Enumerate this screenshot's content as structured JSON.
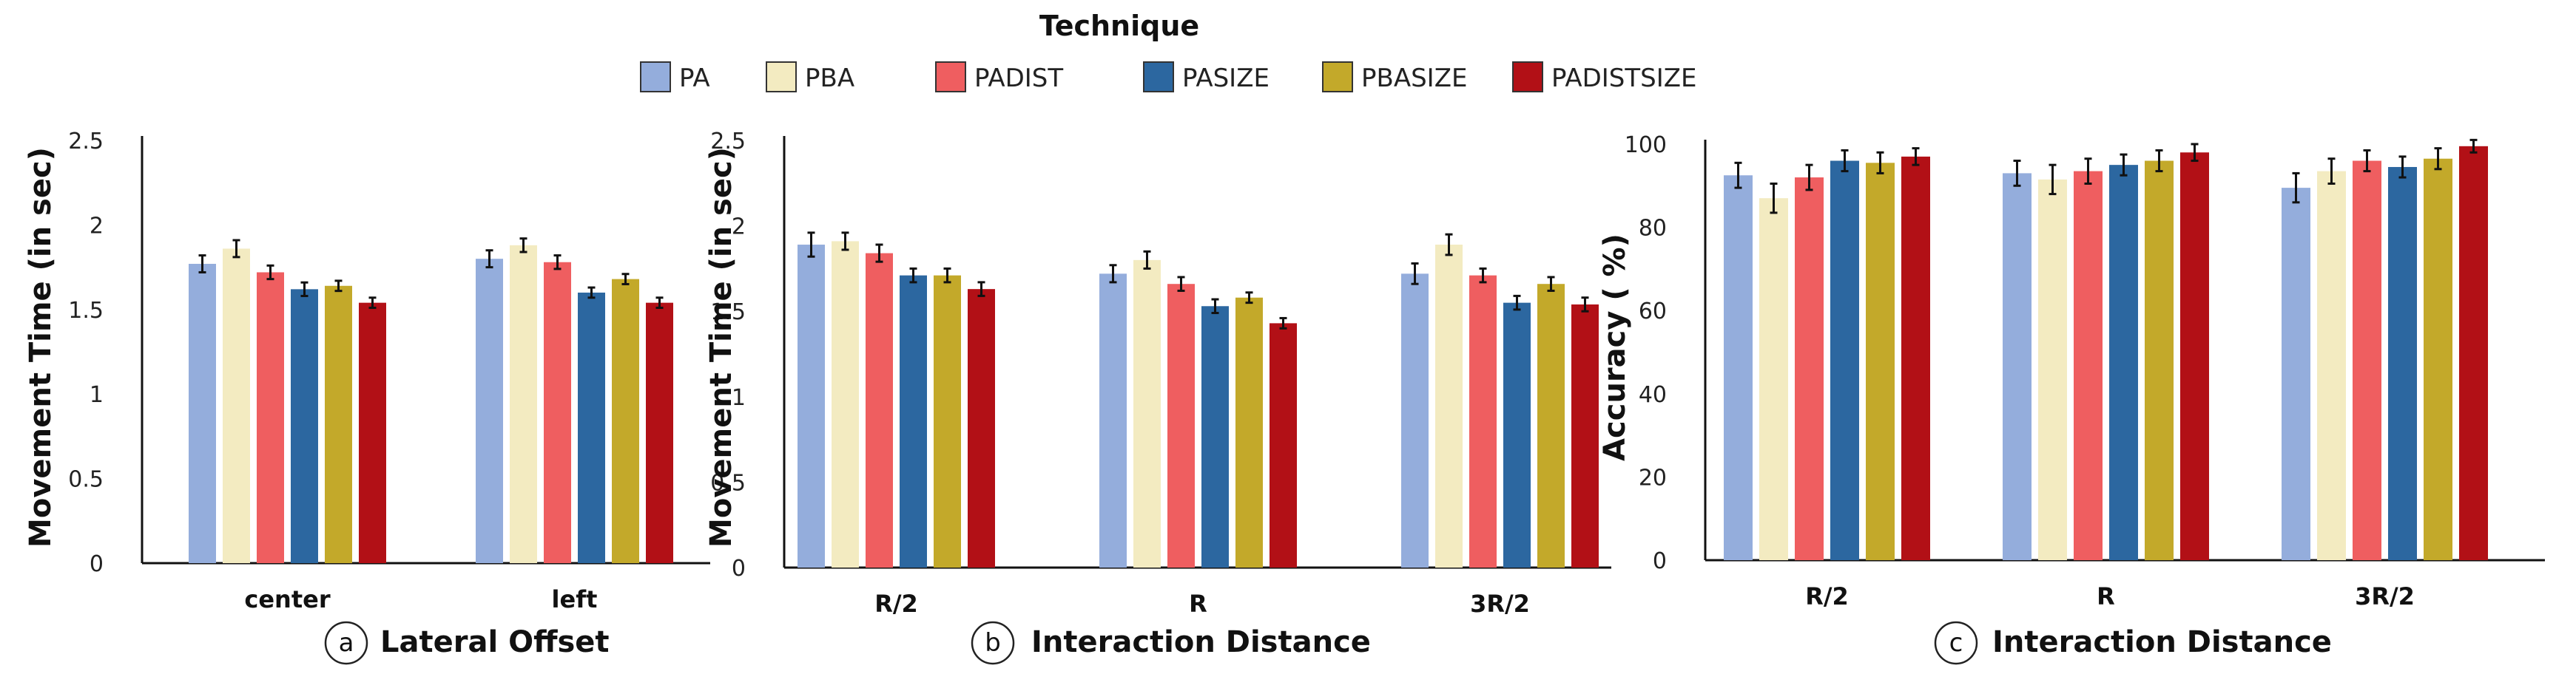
{
  "legend": {
    "title": "Technique",
    "items": [
      {
        "label": "PA",
        "color": "#94ADDC"
      },
      {
        "label": "PBA",
        "color": "#F3EBC1"
      },
      {
        "label": "PADIST",
        "color": "#EF5E60"
      },
      {
        "label": "PASIZE",
        "color": "#2C67A0"
      },
      {
        "label": "PBASIZE",
        "color": "#C3A92A"
      },
      {
        "label": "PADISTSIZE",
        "color": "#B21016"
      }
    ]
  },
  "chart_data": [
    {
      "type": "bar",
      "panel_label": "a",
      "xlabel": "Lateral Offset",
      "ylabel": "Movement Time (in sec)",
      "ylim": [
        0,
        2.5
      ],
      "yticks": [
        "0",
        "0.5",
        "1",
        "1.5",
        "2",
        "2.5"
      ],
      "grid": false,
      "legend_position": "top",
      "categories": [
        "center",
        "left"
      ],
      "series": [
        {
          "name": "PA",
          "values": [
            1.77,
            1.8
          ],
          "errors": [
            0.05,
            0.05
          ]
        },
        {
          "name": "PBA",
          "values": [
            1.86,
            1.88
          ],
          "errors": [
            0.05,
            0.04
          ]
        },
        {
          "name": "PADIST",
          "values": [
            1.72,
            1.78
          ],
          "errors": [
            0.04,
            0.04
          ]
        },
        {
          "name": "PASIZE",
          "values": [
            1.62,
            1.6
          ],
          "errors": [
            0.04,
            0.03
          ]
        },
        {
          "name": "PBASIZE",
          "values": [
            1.64,
            1.68
          ],
          "errors": [
            0.03,
            0.03
          ]
        },
        {
          "name": "PADISTSIZE",
          "values": [
            1.54,
            1.54
          ],
          "errors": [
            0.03,
            0.03
          ]
        }
      ]
    },
    {
      "type": "bar",
      "panel_label": "b",
      "xlabel": "Interaction Distance",
      "ylabel": "Movement Time (in sec)",
      "ylim": [
        0,
        2.5
      ],
      "yticks": [
        "0",
        "0.5",
        "1",
        "1.5",
        "2",
        "2.5"
      ],
      "grid": false,
      "categories": [
        "R/2",
        "R",
        "3R/2"
      ],
      "series": [
        {
          "name": "PA",
          "values": [
            1.89,
            1.72,
            1.72
          ],
          "errors": [
            0.07,
            0.05,
            0.06
          ]
        },
        {
          "name": "PBA",
          "values": [
            1.91,
            1.8,
            1.89
          ],
          "errors": [
            0.05,
            0.05,
            0.06
          ]
        },
        {
          "name": "PADIST",
          "values": [
            1.84,
            1.66,
            1.71
          ],
          "errors": [
            0.05,
            0.04,
            0.04
          ]
        },
        {
          "name": "PASIZE",
          "values": [
            1.71,
            1.53,
            1.55
          ],
          "errors": [
            0.04,
            0.04,
            0.04
          ]
        },
        {
          "name": "PBASIZE",
          "values": [
            1.71,
            1.58,
            1.66
          ],
          "errors": [
            0.04,
            0.03,
            0.04
          ]
        },
        {
          "name": "PADISTSIZE",
          "values": [
            1.63,
            1.43,
            1.54
          ],
          "errors": [
            0.04,
            0.03,
            0.04
          ]
        }
      ]
    },
    {
      "type": "bar",
      "panel_label": "c",
      "xlabel": "Interaction Distance",
      "ylabel": "Accuracy ( %)",
      "ylim": [
        0,
        100
      ],
      "yticks": [
        "0",
        "20",
        "40",
        "60",
        "80",
        "100"
      ],
      "grid": false,
      "categories": [
        "R/2",
        "R",
        "3R/2"
      ],
      "series": [
        {
          "name": "PA",
          "values": [
            92.5,
            93.0,
            89.5
          ],
          "errors": [
            3.0,
            3.0,
            3.5
          ]
        },
        {
          "name": "PBA",
          "values": [
            87.0,
            91.5,
            93.5
          ],
          "errors": [
            3.5,
            3.5,
            3.0
          ]
        },
        {
          "name": "PADIST",
          "values": [
            92.0,
            93.5,
            96.0
          ],
          "errors": [
            3.0,
            3.0,
            2.5
          ]
        },
        {
          "name": "PASIZE",
          "values": [
            96.0,
            95.0,
            94.5
          ],
          "errors": [
            2.5,
            2.5,
            2.5
          ]
        },
        {
          "name": "PBASIZE",
          "values": [
            95.5,
            96.0,
            96.5
          ],
          "errors": [
            2.5,
            2.5,
            2.5
          ]
        },
        {
          "name": "PADISTSIZE",
          "values": [
            97.0,
            98.0,
            99.5
          ],
          "errors": [
            2.0,
            2.0,
            1.5
          ]
        }
      ]
    }
  ]
}
